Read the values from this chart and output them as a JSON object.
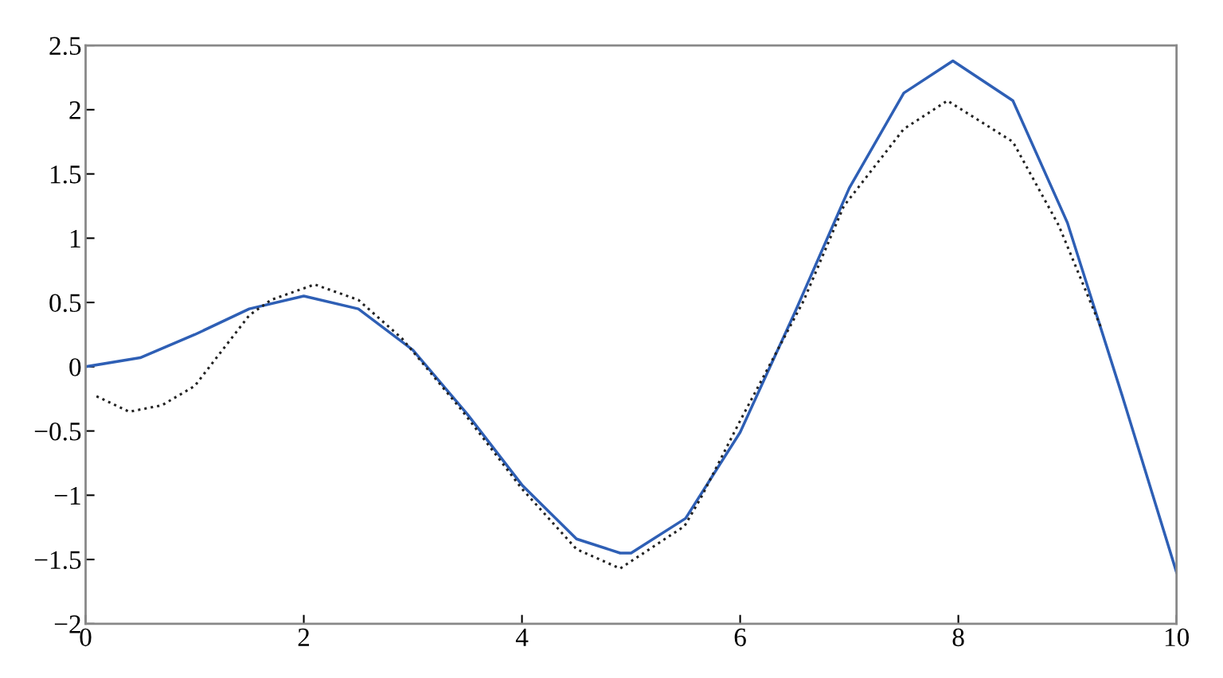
{
  "chart_data": {
    "type": "line",
    "series": [
      {
        "color": "#2e5fb5",
        "line_style": "solid",
        "x": [
          0,
          0.5,
          1,
          1.5,
          2,
          2.5,
          3,
          3.5,
          4,
          4.5,
          4.9,
          5,
          5.5,
          6,
          6.5,
          7,
          7.5,
          7.95,
          8.5,
          9,
          9.5,
          10
        ],
        "values": [
          0,
          0.07,
          0.25,
          0.45,
          0.55,
          0.45,
          0.13,
          -0.37,
          -0.92,
          -1.34,
          -1.45,
          -1.45,
          -1.18,
          -0.51,
          0.42,
          1.39,
          2.13,
          2.38,
          2.07,
          1.12,
          -0.22,
          -1.6
        ]
      },
      {
        "color": "#222222",
        "line_style": "dotted",
        "x": [
          0.1,
          0.4,
          0.7,
          1,
          1.5,
          1.7,
          2.1,
          2.5,
          2.9,
          3.45,
          4,
          4.5,
          4.9,
          5.49,
          5.64,
          6,
          6.58,
          6.95,
          7.5,
          7.9,
          8.5,
          8.92,
          9.31
        ],
        "values": [
          -0.23,
          -0.35,
          -0.3,
          -0.15,
          0.4,
          0.52,
          0.64,
          0.52,
          0.22,
          -0.34,
          -0.95,
          -1.42,
          -1.57,
          -1.24,
          -1.02,
          -0.42,
          0.51,
          1.25,
          1.85,
          2.07,
          1.75,
          1.1,
          0.3
        ]
      }
    ],
    "xlim": [
      0,
      10
    ],
    "xticks": [
      0,
      2,
      4,
      6,
      8,
      10
    ],
    "ylim": [
      -2,
      2.5
    ],
    "yticks": [
      {
        "value": -2,
        "label": "−2"
      },
      {
        "value": -1.5,
        "label": "−1.5"
      },
      {
        "value": -1,
        "label": "−1"
      },
      {
        "value": -0.5,
        "label": "−0.5"
      },
      0,
      0.5,
      1,
      1.5,
      2,
      2.5
    ],
    "grid": false,
    "legend": false
  }
}
